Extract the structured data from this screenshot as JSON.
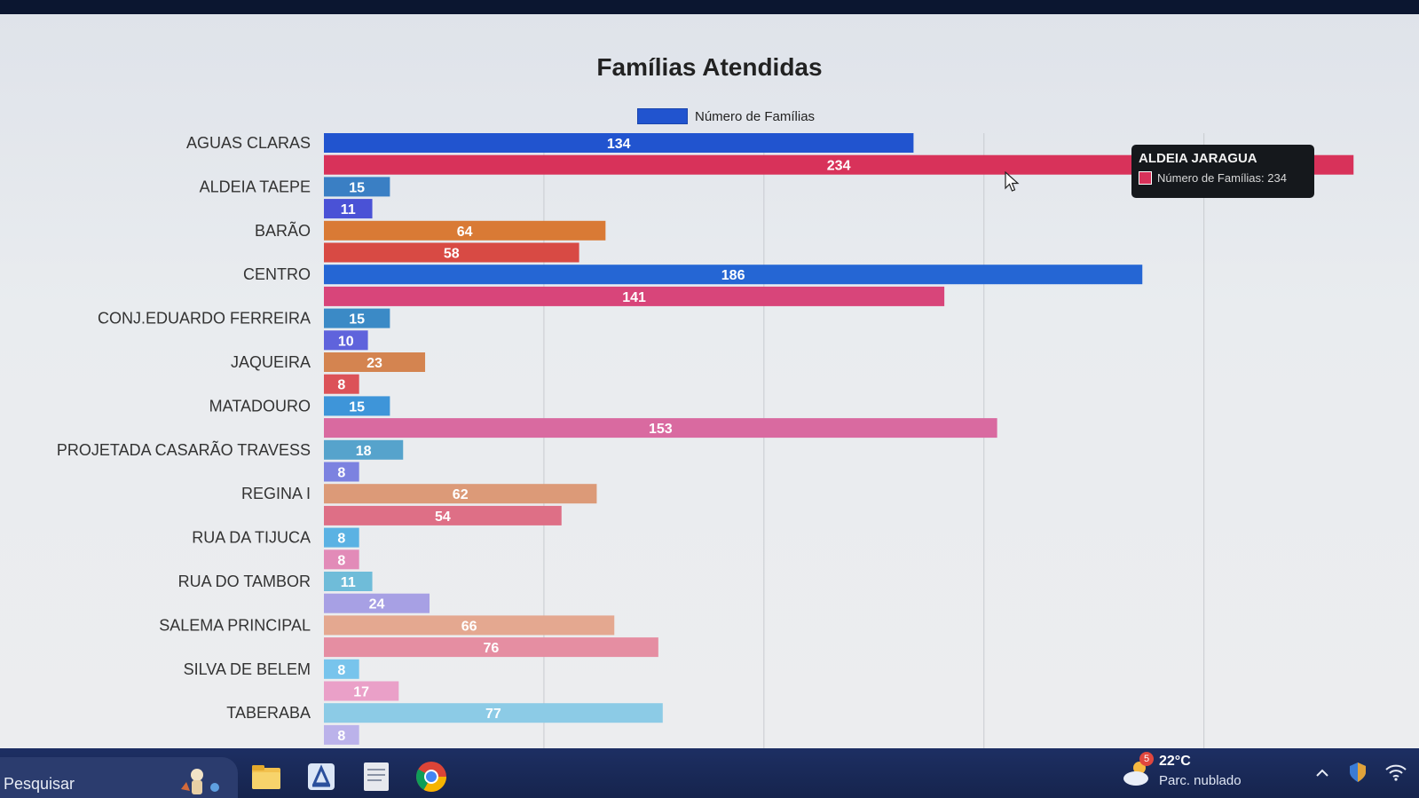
{
  "chart_data": {
    "type": "bar",
    "orientation": "horizontal",
    "title": "Famílias Atendidas",
    "legend": {
      "label": "Número de Famílias",
      "color": "#2154cf",
      "placement": "top-center"
    },
    "xlim": [
      0,
      240
    ],
    "grid": true,
    "categories": [
      "AGUAS CLARAS",
      "ALDEIA TAEPE",
      "BARÃO",
      "CENTRO",
      "CONJ.EDUARDO FERREIRA",
      "JAQUEIRA",
      "MATADOURO",
      "PROJETADA CASARÃO TRAVESS",
      "REGINA I",
      "RUA DA TIJUCA",
      "RUA DO TAMBOR",
      "SALEMA PRINCIPAL",
      "SILVA DE BELEM",
      "TABERABA"
    ],
    "bars": [
      {
        "label": "AGUAS CLARAS",
        "value": 134,
        "color": "#2154cf"
      },
      {
        "label": "ALDEIA JARAGUA",
        "value": 234,
        "color": "#d8325a"
      },
      {
        "label": "ALDEIA TAEPE",
        "value": 15,
        "color": "#3a7fc4"
      },
      {
        "label": "",
        "value": 11,
        "color": "#4a52d6"
      },
      {
        "label": "BARÃO",
        "value": 64,
        "color": "#d97a35"
      },
      {
        "label": "",
        "value": 58,
        "color": "#d84a44"
      },
      {
        "label": "CENTRO",
        "value": 186,
        "color": "#2566d4"
      },
      {
        "label": "",
        "value": 141,
        "color": "#d8457a"
      },
      {
        "label": "CONJ.EDUARDO FERREIRA",
        "value": 15,
        "color": "#3b8ac6"
      },
      {
        "label": "",
        "value": 10,
        "color": "#5f63dc"
      },
      {
        "label": "JAQUEIRA",
        "value": 23,
        "color": "#d48450"
      },
      {
        "label": "",
        "value": 8,
        "color": "#dc5258"
      },
      {
        "label": "MATADOURO",
        "value": 15,
        "color": "#3e95d9"
      },
      {
        "label": "",
        "value": 153,
        "color": "#d96aa0"
      },
      {
        "label": "PROJETADA CASARÃO TRAVESS",
        "value": 18,
        "color": "#56a3cc"
      },
      {
        "label": "",
        "value": 8,
        "color": "#7c82e0"
      },
      {
        "label": "REGINA I",
        "value": 62,
        "color": "#dc9a78"
      },
      {
        "label": "",
        "value": 54,
        "color": "#de6f86"
      },
      {
        "label": "RUA DA TIJUCA",
        "value": 8,
        "color": "#5bb2e3"
      },
      {
        "label": "",
        "value": 8,
        "color": "#e28bb8"
      },
      {
        "label": "RUA DO TAMBOR",
        "value": 11,
        "color": "#6fbcd9"
      },
      {
        "label": "",
        "value": 24,
        "color": "#a7a0e4"
      },
      {
        "label": "SALEMA PRINCIPAL",
        "value": 66,
        "color": "#e4a890"
      },
      {
        "label": "",
        "value": 76,
        "color": "#e58ea2"
      },
      {
        "label": "SILVA DE BELEM",
        "value": 8,
        "color": "#78c4ec"
      },
      {
        "label": "",
        "value": 17,
        "color": "#eaa0c8"
      },
      {
        "label": "TABERABA",
        "value": 77,
        "color": "#8ccbe6"
      },
      {
        "label": "",
        "value": 8,
        "color": "#bbb2ea"
      }
    ]
  },
  "tooltip": {
    "title": "ALDEIA JARAGUA",
    "text": "Número de Famílias: 234",
    "color": "#d8325a"
  },
  "taskbar": {
    "search_label": "Pesquisar",
    "weather_temp": "22°C",
    "weather_desc": "Parc. nublado",
    "weather_badge": "5"
  }
}
